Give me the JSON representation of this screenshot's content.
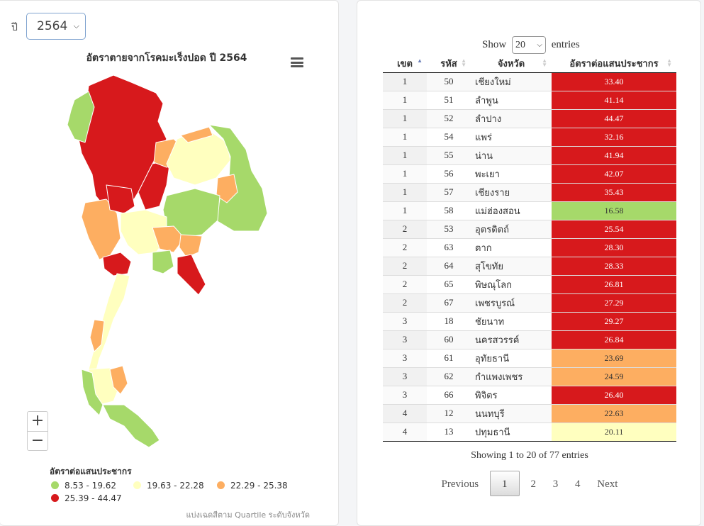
{
  "filter": {
    "year_label": "ปี",
    "year_value": "2564"
  },
  "map": {
    "title": "อัตราตายจากโรคมะเร็งปอด ปี 2564"
  },
  "zoom": {
    "in_label": "+",
    "out_label": "−"
  },
  "legend": {
    "title": "อัตราต่อแสนประชากร",
    "items": [
      {
        "label": "8.53 - 19.62",
        "color": "#a6d96a"
      },
      {
        "label": "19.63 - 22.28",
        "color": "#ffffbf"
      },
      {
        "label": "22.29 - 25.38",
        "color": "#fdae61"
      },
      {
        "label": "25.39 - 44.47",
        "color": "#d7191c"
      }
    ],
    "footnote": "แบ่งเฉดสีตาม Quartile ระดับจังหวัด"
  },
  "table": {
    "show_label": "Show",
    "entries_value": "20",
    "entries_label": "entries",
    "columns": [
      "เขต",
      "รหัส",
      "จังหวัด",
      "อัตราต่อแสนประชากร"
    ],
    "rows": [
      {
        "zone": "1",
        "code": "50",
        "province": "เชียงใหม่",
        "rate": "33.40",
        "color": "#d7191c"
      },
      {
        "zone": "1",
        "code": "51",
        "province": "ลำพูน",
        "rate": "41.14",
        "color": "#d7191c"
      },
      {
        "zone": "1",
        "code": "52",
        "province": "ลำปาง",
        "rate": "44.47",
        "color": "#d7191c"
      },
      {
        "zone": "1",
        "code": "54",
        "province": "แพร่",
        "rate": "32.16",
        "color": "#d7191c"
      },
      {
        "zone": "1",
        "code": "55",
        "province": "น่าน",
        "rate": "41.94",
        "color": "#d7191c"
      },
      {
        "zone": "1",
        "code": "56",
        "province": "พะเยา",
        "rate": "42.07",
        "color": "#d7191c"
      },
      {
        "zone": "1",
        "code": "57",
        "province": "เชียงราย",
        "rate": "35.43",
        "color": "#d7191c"
      },
      {
        "zone": "1",
        "code": "58",
        "province": "แม่ฮ่องสอน",
        "rate": "16.58",
        "color": "#a6d96a"
      },
      {
        "zone": "2",
        "code": "53",
        "province": "อุตรดิตถ์",
        "rate": "25.54",
        "color": "#d7191c"
      },
      {
        "zone": "2",
        "code": "63",
        "province": "ตาก",
        "rate": "28.30",
        "color": "#d7191c"
      },
      {
        "zone": "2",
        "code": "64",
        "province": "สุโขทัย",
        "rate": "28.33",
        "color": "#d7191c"
      },
      {
        "zone": "2",
        "code": "65",
        "province": "พิษณุโลก",
        "rate": "26.81",
        "color": "#d7191c"
      },
      {
        "zone": "2",
        "code": "67",
        "province": "เพชรบูรณ์",
        "rate": "27.29",
        "color": "#d7191c"
      },
      {
        "zone": "3",
        "code": "18",
        "province": "ชัยนาท",
        "rate": "29.27",
        "color": "#d7191c"
      },
      {
        "zone": "3",
        "code": "60",
        "province": "นครสวรรค์",
        "rate": "26.84",
        "color": "#d7191c"
      },
      {
        "zone": "3",
        "code": "61",
        "province": "อุทัยธานี",
        "rate": "23.69",
        "color": "#fdae61"
      },
      {
        "zone": "3",
        "code": "62",
        "province": "กำแพงเพชร",
        "rate": "24.59",
        "color": "#fdae61"
      },
      {
        "zone": "3",
        "code": "66",
        "province": "พิจิตร",
        "rate": "26.40",
        "color": "#d7191c"
      },
      {
        "zone": "4",
        "code": "12",
        "province": "นนทบุรี",
        "rate": "22.63",
        "color": "#fdae61"
      },
      {
        "zone": "4",
        "code": "13",
        "province": "ปทุมธานี",
        "rate": "20.11",
        "color": "#ffffbf"
      }
    ],
    "info": "Showing 1 to 20 of 77 entries"
  },
  "pagination": {
    "previous": "Previous",
    "pages": [
      "1",
      "2",
      "3",
      "4"
    ],
    "current": "1",
    "next": "Next"
  }
}
